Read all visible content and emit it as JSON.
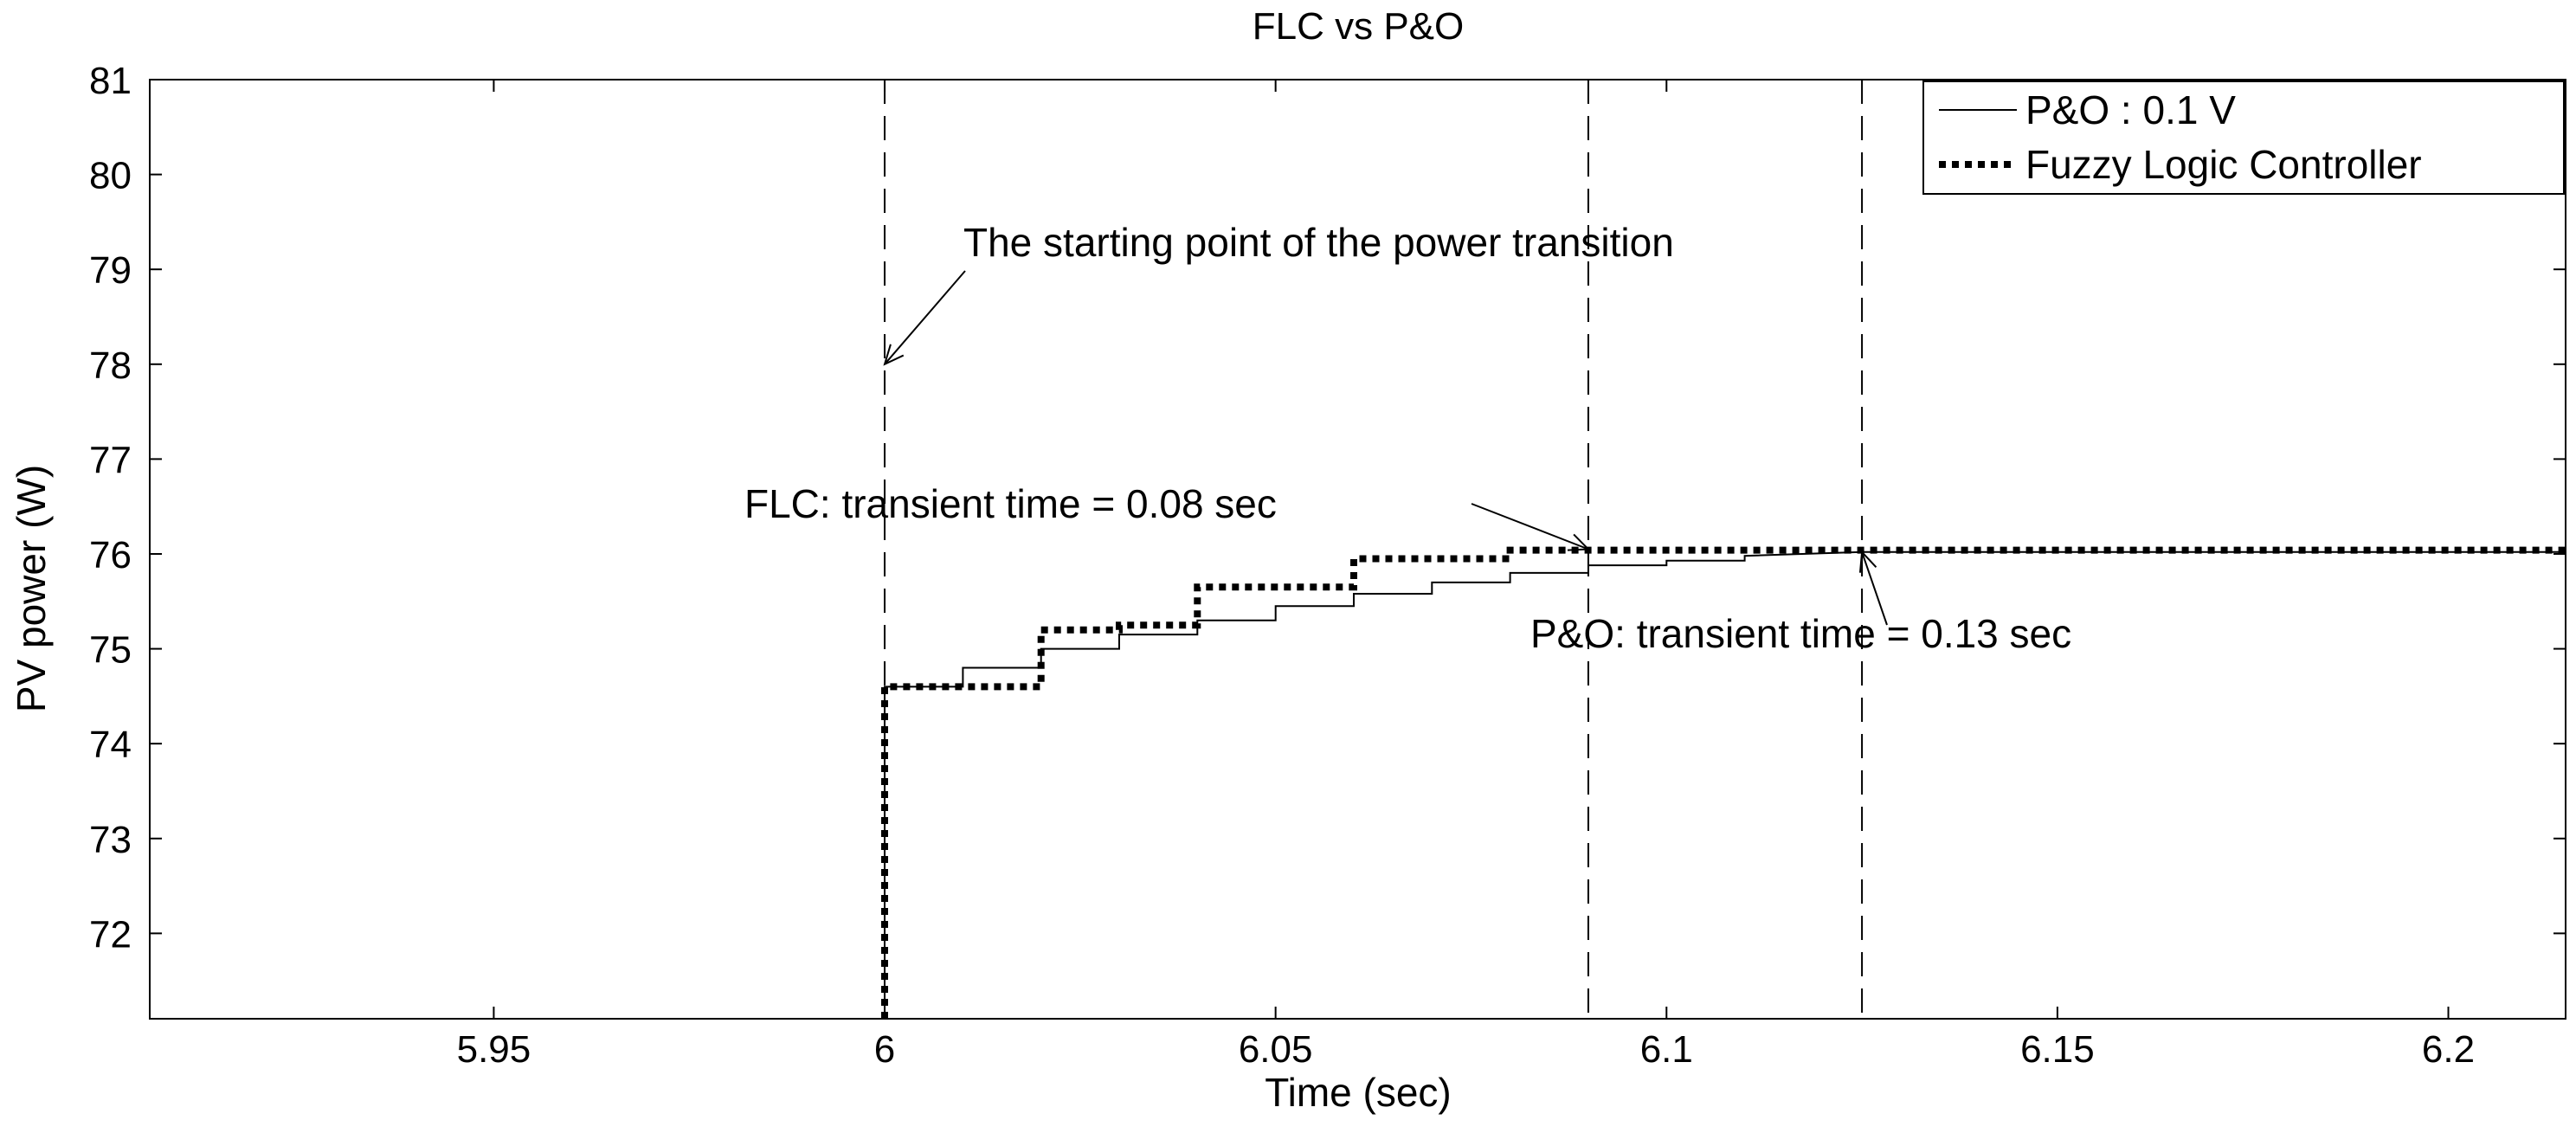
{
  "chart_data": {
    "type": "line",
    "title": "FLC vs P&O",
    "xlabel": "Time (sec)",
    "ylabel": "PV power (W)",
    "xlim": [
      5.906,
      6.215
    ],
    "ylim": [
      71.1,
      81
    ],
    "x_ticks": [
      5.95,
      6,
      6.05,
      6.1,
      6.15,
      6.2
    ],
    "x_tick_labels": [
      "5.95",
      "6",
      "6.05",
      "6.1",
      "6.15",
      "6.2"
    ],
    "y_ticks": [
      72,
      73,
      74,
      75,
      76,
      77,
      78,
      79,
      80,
      81
    ],
    "y_tick_labels": [
      "72",
      "73",
      "74",
      "75",
      "76",
      "77",
      "78",
      "79",
      "80",
      "81"
    ],
    "grid": false,
    "legend_position": "top-right",
    "series": [
      {
        "name": "P&O : 0.1 V",
        "style": "solid",
        "x": [
          6.0,
          6.0,
          6.01,
          6.01,
          6.02,
          6.02,
          6.03,
          6.03,
          6.04,
          6.04,
          6.05,
          6.05,
          6.06,
          6.06,
          6.07,
          6.07,
          6.08,
          6.08,
          6.09,
          6.09,
          6.1,
          6.1,
          6.11,
          6.11,
          6.125,
          6.215
        ],
        "y": [
          71.1,
          74.6,
          74.6,
          74.8,
          74.8,
          75.0,
          75.0,
          75.15,
          75.15,
          75.3,
          75.3,
          75.45,
          75.45,
          75.58,
          75.58,
          75.7,
          75.7,
          75.8,
          75.8,
          75.88,
          75.88,
          75.93,
          75.93,
          75.98,
          76.02,
          76.02
        ]
      },
      {
        "name": "Fuzzy Logic Controller",
        "style": "dotted",
        "x": [
          6.0,
          6.0,
          6.02,
          6.02,
          6.03,
          6.03,
          6.04,
          6.04,
          6.06,
          6.06,
          6.08,
          6.08,
          6.215
        ],
        "y": [
          71.1,
          74.6,
          74.6,
          75.2,
          75.2,
          75.25,
          75.25,
          75.65,
          75.65,
          75.95,
          75.95,
          76.04,
          76.04
        ]
      }
    ],
    "vlines": [
      6.0,
      6.09,
      6.125
    ],
    "annotations": [
      {
        "text": "The starting point of the power transition",
        "x": 6.01,
        "y": 79.1,
        "arrow_to": [
          6.0,
          78.0
        ]
      },
      {
        "text": "FLC:  transient time = 0.08 sec",
        "x": 5.982,
        "y": 76.5,
        "arrow_to": [
          6.09,
          76.05
        ]
      },
      {
        "text": "P&O: transient time = 0.13 sec",
        "x": 6.084,
        "y": 74.85,
        "arrow_to": [
          6.125,
          76.02
        ]
      }
    ]
  }
}
